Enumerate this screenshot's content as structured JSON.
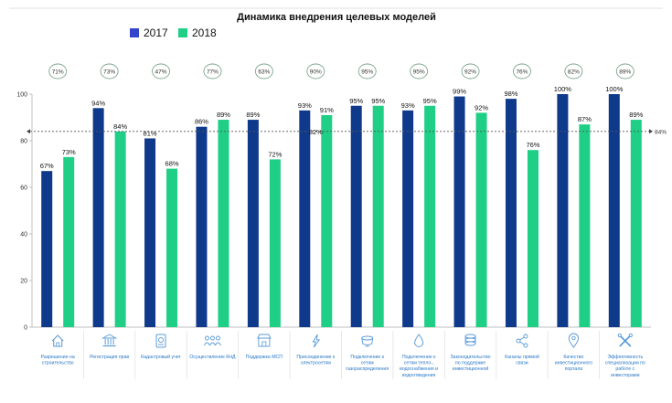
{
  "chart_data": {
    "type": "bar",
    "title": "Динамика внедрения целевых моделей",
    "legend": [
      "2017",
      "2018"
    ],
    "colors": {
      "s2017": "#0f3a8c",
      "s2018": "#1fcf86",
      "legend_2017": "#3344cc",
      "legend_2018": "#1fcf86",
      "bubble_border": "#7aa68c",
      "icon": "#5a9bd8",
      "cat_text": "#2b78c5"
    },
    "ylim": [
      0,
      100
    ],
    "yticks": [
      "0",
      "20",
      "40",
      "60",
      "80",
      "100"
    ],
    "reference_line": {
      "value": 84,
      "label": "84%"
    },
    "categories": [
      {
        "label": [
          "Разрешение на",
          "строительство"
        ],
        "icon": "house-icon",
        "total": "71%",
        "v2017": 67,
        "v2018": 73,
        "l2017": "67%",
        "l2018": "73%"
      },
      {
        "label": [
          "Регистрация прав"
        ],
        "icon": "bank-building-icon",
        "total": "73%",
        "v2017": 94,
        "v2018": 84,
        "l2017": "94%",
        "l2018": "84%"
      },
      {
        "label": [
          "Кадастровый учет"
        ],
        "icon": "cadastre-document-icon",
        "total": "47%",
        "v2017": 81,
        "v2018": 68,
        "l2017": "81%",
        "l2018": "68%"
      },
      {
        "label": [
          "Осуществление КНД"
        ],
        "icon": "people-group-icon",
        "total": "77%",
        "v2017": 86,
        "v2018": 89,
        "l2017": "86%",
        "l2018": "89%"
      },
      {
        "label": [
          "Поддержка МСП"
        ],
        "icon": "shop-icon",
        "total": "63%",
        "v2017": 89,
        "v2018": 72,
        "l2017": "89%",
        "l2018": "72%"
      },
      {
        "label": [
          "Присоединение к",
          "электросетям"
        ],
        "icon": "lightning-icon",
        "total": "90%",
        "v2017": 93,
        "v2018": 91,
        "l2017": "93%",
        "l2018": "91%",
        "extra": "82%"
      },
      {
        "label": [
          "Подключение к",
          "сетям",
          "газораспределения"
        ],
        "icon": "gas-pot-icon",
        "total": "95%",
        "v2017": 95,
        "v2018": 95,
        "l2017": "95%",
        "l2018": "95%"
      },
      {
        "label": [
          "Подключение к",
          "сетям тепло-,",
          "водоснабжения и",
          "водоотведения"
        ],
        "icon": "water-drop-icon",
        "total": "95%",
        "v2017": 93,
        "v2018": 95,
        "l2017": "93%",
        "l2018": "95%"
      },
      {
        "label": [
          "Законодательство",
          "по поддержке",
          "инвестиционной"
        ],
        "icon": "coins-stack-icon",
        "total": "92%",
        "v2017": 99,
        "v2018": 92,
        "l2017": "99%",
        "l2018": "92%"
      },
      {
        "label": [
          "Каналы прямой",
          "связи"
        ],
        "icon": "share-icon",
        "total": "76%",
        "v2017": 98,
        "v2018": 76,
        "l2017": "98%",
        "l2018": "76%"
      },
      {
        "label": [
          "Качество",
          "инвестиционного",
          "портала"
        ],
        "icon": "map-pin-icon",
        "total": "82%",
        "v2017": 100,
        "v2018": 87,
        "l2017": "100%",
        "l2018": "87%"
      },
      {
        "label": [
          "Эффективность",
          "специализации по",
          "работе с",
          "инвесторами"
        ],
        "icon": "tools-icon",
        "total": "89%",
        "v2017": 100,
        "v2018": 89,
        "l2017": "100%",
        "l2018": "89%"
      }
    ]
  }
}
